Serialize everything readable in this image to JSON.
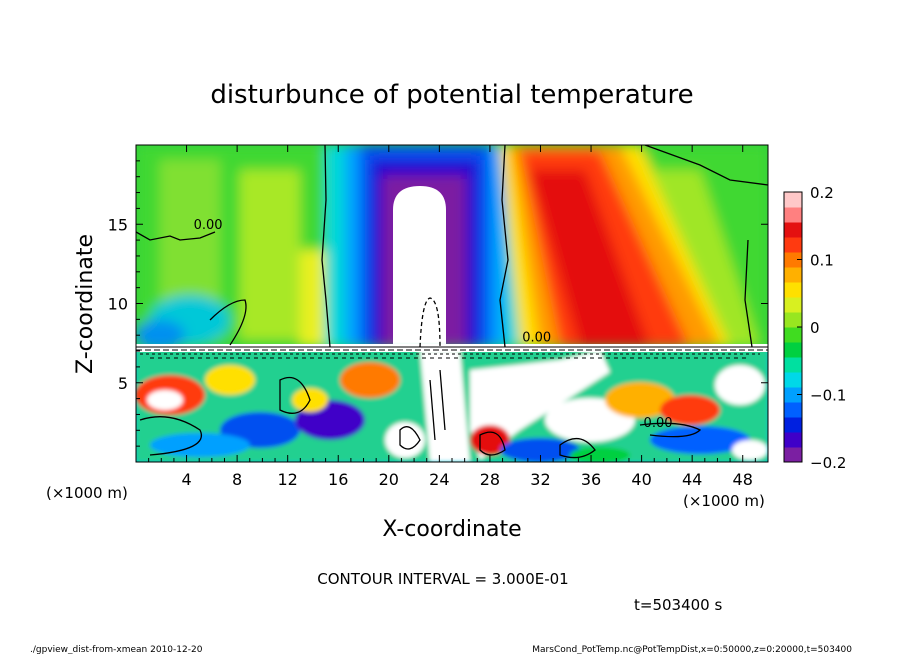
{
  "chart_data": {
    "type": "heatmap",
    "title": "disturbunce of potential temperature",
    "xlabel": "X-coordinate",
    "ylabel": "Z-coordinate",
    "x_unit_left": "(×1000 m)",
    "x_unit_right": "(×1000 m)",
    "xlim": [
      0,
      50
    ],
    "ylim": [
      0,
      20
    ],
    "x_ticks": [
      {
        "value": 4,
        "label": "4"
      },
      {
        "value": 8,
        "label": "8"
      },
      {
        "value": 12,
        "label": "12"
      },
      {
        "value": 16,
        "label": "16"
      },
      {
        "value": 20,
        "label": "20"
      },
      {
        "value": 24,
        "label": "24"
      },
      {
        "value": 28,
        "label": "28"
      },
      {
        "value": 32,
        "label": "32"
      },
      {
        "value": 36,
        "label": "36"
      },
      {
        "value": 40,
        "label": "40"
      },
      {
        "value": 44,
        "label": "44"
      },
      {
        "value": 48,
        "label": "48"
      }
    ],
    "y_ticks": [
      {
        "value": 5,
        "label": "5"
      },
      {
        "value": 10,
        "label": "10"
      },
      {
        "value": 15,
        "label": "15"
      }
    ],
    "colorbar": {
      "range": [
        -0.2,
        0.2
      ],
      "ticks": [
        {
          "value": 0.2,
          "label": "0.2"
        },
        {
          "value": 0.1,
          "label": "0.1"
        },
        {
          "value": 0,
          "label": "0"
        },
        {
          "value": -0.1,
          "label": "−0.1"
        },
        {
          "value": -0.2,
          "label": "−0.2"
        }
      ],
      "colors": [
        "#7b1fa2",
        "#3f00c8",
        "#0020e0",
        "#0060ff",
        "#00a0ff",
        "#00d8e8",
        "#00e0a0",
        "#00d040",
        "#40dc20",
        "#98e620",
        "#d8f020",
        "#ffe000",
        "#ffb000",
        "#ff7a00",
        "#ff3a10",
        "#e41010",
        "#ff8080",
        "#ffc8c8"
      ]
    },
    "contour_labels": [
      {
        "x": 5.7,
        "y": 14.7,
        "text": "0.00"
      },
      {
        "x": 31.7,
        "y": 7.6,
        "text": "0.00"
      },
      {
        "x": 41.3,
        "y": 2.2,
        "text": "0.00"
      }
    ],
    "contour_interval": "CONTOUR INTERVAL = 3.000E-01",
    "time_label": "t=503400 s"
  },
  "footer": {
    "left": "./gpview_dist-from-xmean  2010-12-20",
    "right": "MarsCond_PotTemp.nc@PotTempDist,x=0:50000,z=0:20000,t=503400"
  }
}
